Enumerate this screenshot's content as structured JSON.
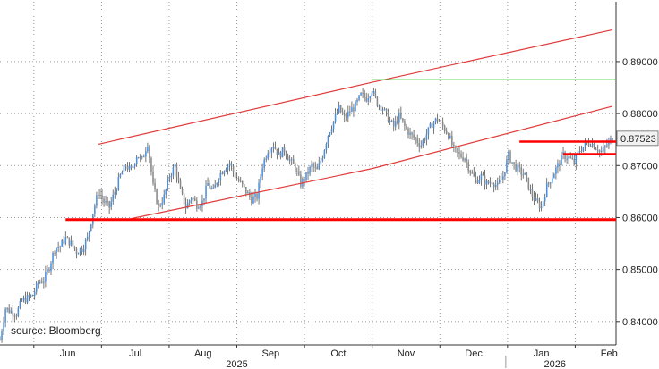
{
  "chart_data": {
    "type": "candlestick",
    "title": "",
    "xlabel": "",
    "ylabel": "",
    "ylim": [
      0.8355,
      0.9015
    ],
    "y_ticks": [
      {
        "value": 0.84,
        "label": "0.84000"
      },
      {
        "value": 0.85,
        "label": "0.85000"
      },
      {
        "value": 0.86,
        "label": "0.86000"
      },
      {
        "value": 0.87,
        "label": "0.87000"
      },
      {
        "value": 0.88,
        "label": "0.88000"
      },
      {
        "value": 0.89,
        "label": "0.89000"
      }
    ],
    "x_ticks": [
      "Jun",
      "Jul",
      "Aug",
      "Sep",
      "Oct",
      "Nov",
      "Dec",
      "Jan",
      "Feb"
    ],
    "year_labels": [
      "2025",
      "2026"
    ],
    "grid": true,
    "colors": {
      "up": "#4a8fdc",
      "down": "#888888",
      "channel": "#e03a3a",
      "support": "#ff0000",
      "high_line": "#33cc33",
      "wick": "#555555"
    },
    "last_price": {
      "value": 0.87523,
      "label": "0.87523"
    },
    "source": "source: Bloomberg",
    "path": [
      [
        0,
        0.8365
      ],
      [
        3,
        0.8425
      ],
      [
        6,
        0.842
      ],
      [
        9,
        0.8415
      ],
      [
        12,
        0.844
      ],
      [
        15,
        0.8445
      ],
      [
        18,
        0.845
      ],
      [
        21,
        0.8475
      ],
      [
        24,
        0.848
      ],
      [
        27,
        0.8505
      ],
      [
        30,
        0.854
      ],
      [
        33,
        0.8545
      ],
      [
        36,
        0.856
      ],
      [
        39,
        0.855
      ],
      [
        42,
        0.8535
      ],
      [
        45,
        0.854
      ],
      [
        48,
        0.856
      ],
      [
        51,
        0.861
      ],
      [
        54,
        0.865
      ],
      [
        57,
        0.863
      ],
      [
        60,
        0.862
      ],
      [
        63,
        0.865
      ],
      [
        66,
        0.868
      ],
      [
        69,
        0.87
      ],
      [
        72,
        0.869
      ],
      [
        75,
        0.872
      ],
      [
        78,
        0.871
      ],
      [
        81,
        0.8745
      ],
      [
        84,
        0.866
      ],
      [
        87,
        0.862
      ],
      [
        90,
        0.864
      ],
      [
        93,
        0.868
      ],
      [
        96,
        0.87
      ],
      [
        99,
        0.865
      ],
      [
        102,
        0.862
      ],
      [
        105,
        0.864
      ],
      [
        108,
        0.8625
      ],
      [
        111,
        0.863
      ],
      [
        114,
        0.8665
      ],
      [
        117,
        0.865
      ],
      [
        120,
        0.868
      ],
      [
        123,
        0.8695
      ],
      [
        126,
        0.8705
      ],
      [
        129,
        0.868
      ],
      [
        132,
        0.8665
      ],
      [
        135,
        0.865
      ],
      [
        138,
        0.8635
      ],
      [
        141,
        0.864
      ],
      [
        144,
        0.87
      ],
      [
        147,
        0.873
      ],
      [
        150,
        0.874
      ],
      [
        153,
        0.872
      ],
      [
        156,
        0.873
      ],
      [
        159,
        0.871
      ],
      [
        162,
        0.8695
      ],
      [
        165,
        0.8665
      ],
      [
        168,
        0.868
      ],
      [
        171,
        0.87
      ],
      [
        174,
        0.869
      ],
      [
        177,
        0.872
      ],
      [
        180,
        0.876
      ],
      [
        183,
        0.8785
      ],
      [
        186,
        0.881
      ],
      [
        189,
        0.879
      ],
      [
        192,
        0.8805
      ],
      [
        195,
        0.8815
      ],
      [
        198,
        0.8835
      ],
      [
        201,
        0.883
      ],
      [
        204,
        0.8845
      ],
      [
        207,
        0.882
      ],
      [
        210,
        0.881
      ],
      [
        213,
        0.879
      ],
      [
        216,
        0.8775
      ],
      [
        219,
        0.8795
      ],
      [
        222,
        0.8775
      ],
      [
        225,
        0.876
      ],
      [
        228,
        0.875
      ],
      [
        231,
        0.874
      ],
      [
        234,
        0.876
      ],
      [
        237,
        0.878
      ],
      [
        240,
        0.879
      ],
      [
        243,
        0.8775
      ],
      [
        246,
        0.876
      ],
      [
        249,
        0.873
      ],
      [
        252,
        0.872
      ],
      [
        255,
        0.8715
      ],
      [
        258,
        0.869
      ],
      [
        261,
        0.867
      ],
      [
        264,
        0.868
      ],
      [
        267,
        0.8665
      ],
      [
        270,
        0.867
      ],
      [
        273,
        0.866
      ],
      [
        276,
        0.868
      ],
      [
        279,
        0.872
      ],
      [
        282,
        0.87
      ],
      [
        285,
        0.869
      ],
      [
        288,
        0.868
      ],
      [
        291,
        0.865
      ],
      [
        294,
        0.863
      ],
      [
        297,
        0.862
      ],
      [
        300,
        0.866
      ],
      [
        303,
        0.868
      ],
      [
        306,
        0.87
      ],
      [
        309,
        0.872
      ],
      [
        312,
        0.8715
      ],
      [
        315,
        0.8705
      ],
      [
        318,
        0.873
      ],
      [
        321,
        0.874
      ],
      [
        324,
        0.8745
      ],
      [
        327,
        0.8735
      ],
      [
        330,
        0.8725
      ],
      [
        333,
        0.874
      ],
      [
        336,
        0.8752
      ]
    ],
    "overlays": {
      "channel_upper": [
        [
          54,
          0.8741
        ],
        [
          204,
          0.886
        ],
        [
          336,
          0.8961
        ]
      ],
      "channel_lower": [
        [
          72,
          0.8598
        ],
        [
          204,
          0.8694
        ],
        [
          336,
          0.8814
        ]
      ],
      "support": {
        "y": 0.8596,
        "x_start": 36,
        "x_end": 336
      },
      "high_line": {
        "y": 0.8865,
        "x_start": 204,
        "x_end": 336
      },
      "resistance_top": {
        "y": 0.8746,
        "x_start": 285,
        "x_end": 336
      },
      "resistance_low": {
        "y": 0.8722,
        "x_start": 309,
        "x_end": 336
      }
    }
  }
}
